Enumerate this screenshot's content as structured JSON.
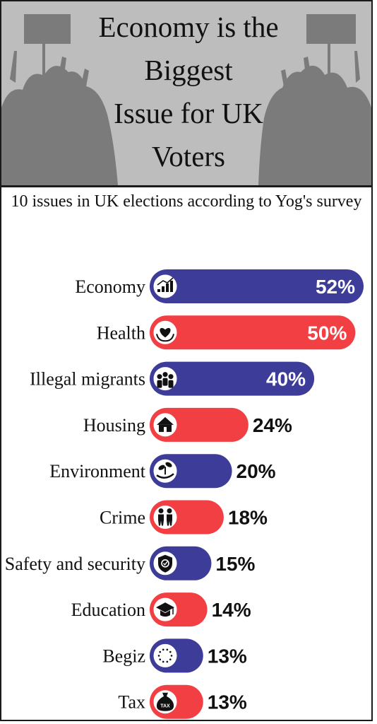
{
  "title": "Economy is the\nBiggest\nIssue for UK\nVoters",
  "subtitle": "10 issues in UK elections according to Yog's survey",
  "colors": {
    "blue": "#3e3c99",
    "red": "#f23f43",
    "header_bg": "#bdbdbd",
    "crowd": "#7b7b7b"
  },
  "chart_data": {
    "type": "bar",
    "categories": [
      "Economy",
      "Health",
      "Illegal migrants",
      "Housing",
      "Environment",
      "Crime",
      "Safety and security",
      "Education",
      "Begiz",
      "Tax"
    ],
    "values": [
      52,
      50,
      40,
      24,
      20,
      18,
      15,
      14,
      13,
      13
    ],
    "labels": [
      "52%",
      "50%",
      "40%",
      "24%",
      "20%",
      "18%",
      "15%",
      "14%",
      "13%",
      "13%"
    ],
    "bar_colors": [
      "blue",
      "red",
      "blue",
      "red",
      "blue",
      "red",
      "blue",
      "red",
      "blue",
      "red"
    ],
    "icons": [
      "economy-chart-icon",
      "health-heart-icon",
      "migrants-people-icon",
      "housing-home-icon",
      "environment-plant-icon",
      "crime-figures-icon",
      "safety-shield-icon",
      "education-cap-icon",
      "begiz-dots-icon",
      "tax-moneybag-icon"
    ],
    "tax_icon_text": "TAX",
    "unit": "%",
    "orientation": "horizontal",
    "title": "10 issues in UK elections according to Yog's survey"
  }
}
